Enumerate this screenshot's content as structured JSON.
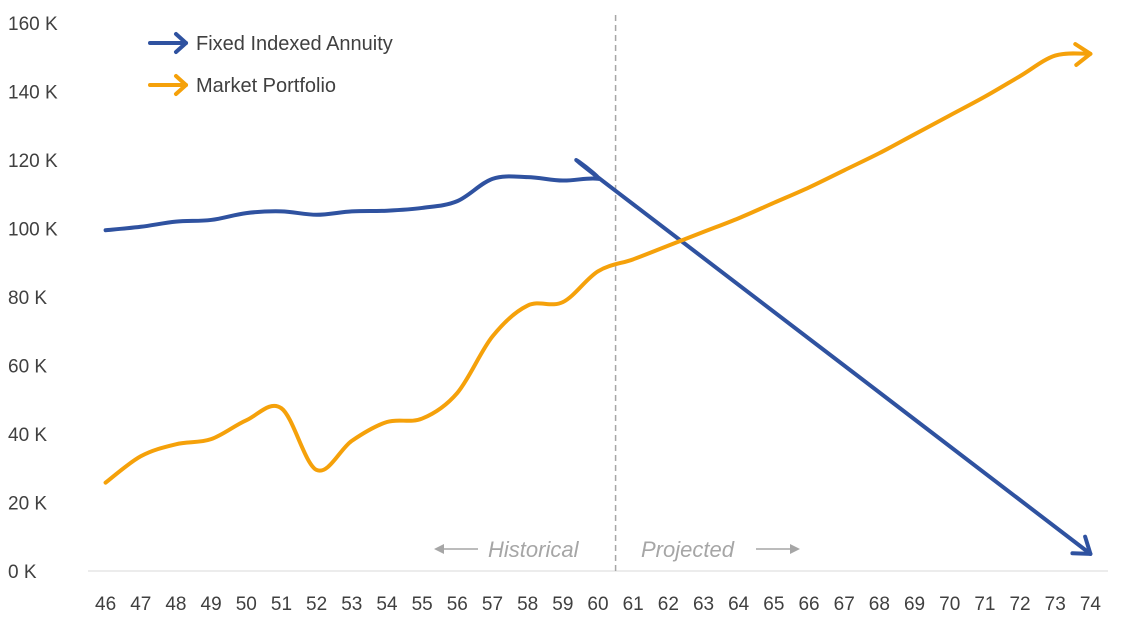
{
  "chart_data": {
    "type": "line",
    "title": "",
    "xlabel": "",
    "ylabel": "",
    "x": [
      46,
      47,
      48,
      49,
      50,
      51,
      52,
      53,
      54,
      55,
      56,
      57,
      58,
      59,
      60,
      61,
      62,
      63,
      64,
      65,
      66,
      67,
      68,
      69,
      70,
      71,
      72,
      73,
      74
    ],
    "y_ticks": [
      "0 K",
      "20 K",
      "40 K",
      "60 K",
      "80 K",
      "100 K",
      "120 K",
      "140 K",
      "160 K"
    ],
    "ylim": [
      0,
      160000
    ],
    "grid": false,
    "legend_position": "top-left",
    "series": [
      {
        "name": "Fixed Indexed Annuity",
        "color": "#2f52a0",
        "x": [
          46,
          47,
          48,
          49,
          50,
          51,
          52,
          53,
          54,
          55,
          56,
          57,
          58,
          59,
          60,
          60.5,
          74
        ],
        "values": [
          99500,
          100500,
          102000,
          102500,
          104500,
          105000,
          104000,
          105000,
          105200,
          106000,
          108000,
          114500,
          115000,
          114000,
          114500,
          111000,
          5000
        ]
      },
      {
        "name": "Market Portfolio",
        "color": "#f5a10a",
        "x": [
          46,
          47,
          48,
          49,
          50,
          51,
          52,
          53,
          54,
          55,
          56,
          57,
          58,
          59,
          60,
          61,
          62,
          63,
          64,
          65,
          66,
          67,
          68,
          69,
          70,
          71,
          72,
          73,
          74
        ],
        "values": [
          25800,
          33500,
          37000,
          38500,
          44000,
          47500,
          29500,
          38000,
          43500,
          44500,
          52000,
          68500,
          77500,
          78500,
          87500,
          91000,
          95000,
          99000,
          103000,
          107500,
          112000,
          117000,
          122000,
          127500,
          133000,
          138500,
          144500,
          150500,
          151000
        ]
      }
    ],
    "divider_x": 60.5,
    "annotations": [
      {
        "text": "Historical",
        "arrow": "left",
        "x": 57.5
      },
      {
        "text": "Projected",
        "arrow": "right",
        "x": 63.5
      }
    ]
  }
}
